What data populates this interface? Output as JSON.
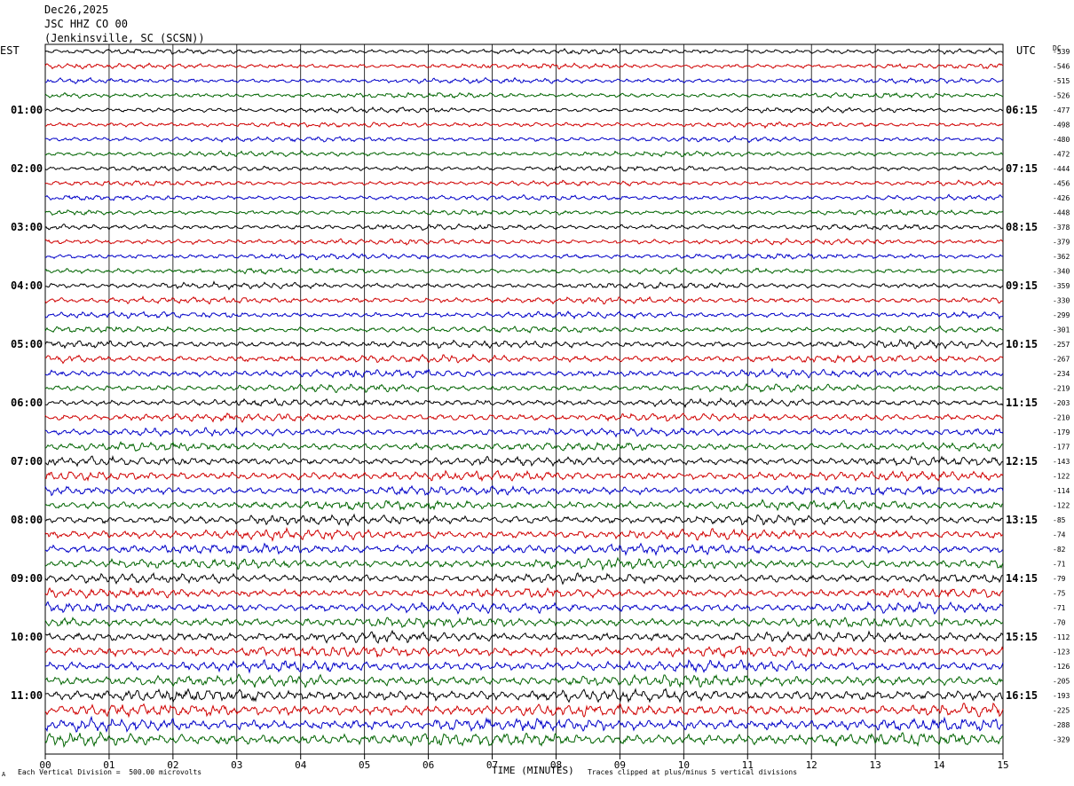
{
  "header": {
    "date": "Dec26,2025",
    "station": "JSC HHZ CO 00",
    "location": "(Jenkinsville, SC (SCSN))"
  },
  "left_timezone": "EST",
  "right_timezone": "UTC",
  "dc_label": "DC",
  "footer": {
    "scale_note": "Each Vertical Division =  500.00 microvolts",
    "clip_note": "Traces clipped at plus/minus 5 vertical divisions",
    "corner_mark": "A"
  },
  "colors": {
    "trace": [
      "#000000",
      "#d00000",
      "#0000c8",
      "#006400"
    ],
    "grid": "#000000"
  },
  "chart_data": {
    "type": "line",
    "title": "",
    "xlabel": "TIME (MINUTES)",
    "xlim": [
      0,
      15
    ],
    "x_ticks": [
      "00",
      "01",
      "02",
      "03",
      "04",
      "05",
      "06",
      "07",
      "08",
      "09",
      "10",
      "11",
      "12",
      "13",
      "14",
      "15"
    ],
    "left_hour_labels": [
      "01:00",
      "02:00",
      "03:00",
      "04:00",
      "05:00",
      "06:00",
      "07:00",
      "08:00",
      "09:00",
      "10:00",
      "11:00"
    ],
    "right_hour_labels": [
      "06:15",
      "07:15",
      "08:15",
      "09:15",
      "10:15",
      "11:15",
      "12:15",
      "13:15",
      "14:15",
      "15:15",
      "16:15"
    ],
    "dc_offsets": [
      -539,
      -546,
      -515,
      -526,
      -477,
      -498,
      -480,
      -472,
      -444,
      -456,
      -426,
      -448,
      -378,
      -379,
      -362,
      -340,
      -359,
      -330,
      -299,
      -301,
      -257,
      -267,
      -234,
      -219,
      -203,
      -210,
      -179,
      -177,
      -143,
      -122,
      -114,
      -122,
      -85,
      -74,
      -82,
      -71,
      -79,
      -75,
      -71,
      -70,
      -112,
      -123,
      -126,
      -205,
      -193,
      -225,
      -288,
      -329
    ],
    "trace_amplitude_divisions": [
      1.0,
      1.0,
      1.0,
      1.0,
      1.0,
      1.0,
      1.0,
      1.0,
      1.0,
      1.0,
      1.0,
      1.0,
      1.1,
      1.1,
      1.1,
      1.1,
      1.2,
      1.2,
      1.2,
      1.2,
      1.4,
      1.5,
      1.5,
      1.4,
      1.4,
      1.5,
      1.5,
      1.6,
      1.7,
      1.8,
      1.8,
      1.8,
      1.8,
      1.9,
      1.9,
      2.0,
      1.8,
      1.8,
      1.9,
      1.9,
      2.0,
      2.1,
      2.1,
      2.2,
      2.3,
      2.4,
      2.4,
      2.5
    ]
  }
}
